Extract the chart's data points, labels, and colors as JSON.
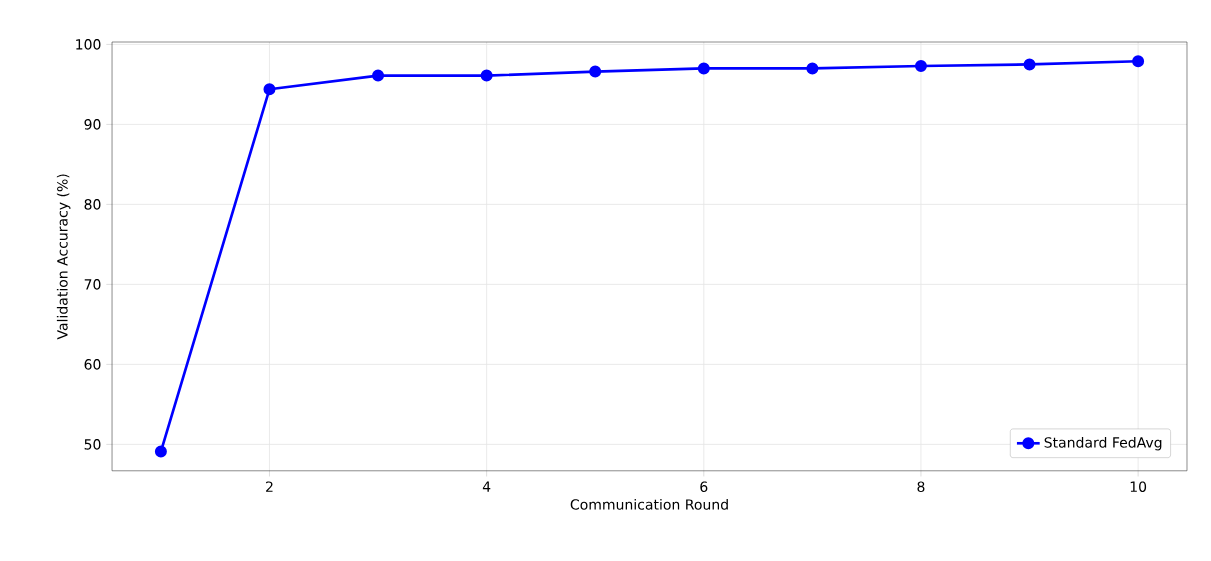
{
  "chart_data": {
    "type": "line",
    "xlabel": "Communication Round",
    "ylabel": "Validation Accuracy (%)",
    "x": [
      1,
      2,
      3,
      4,
      5,
      6,
      7,
      8,
      9,
      10
    ],
    "series": [
      {
        "name": "Standard FedAvg",
        "color": "#0000ff",
        "values": [
          49.1,
          94.4,
          96.1,
          96.1,
          96.6,
          97.0,
          97.0,
          97.3,
          97.5,
          97.9
        ]
      }
    ],
    "xlim": [
      0.55,
      10.45
    ],
    "ylim": [
      46.7,
      100.3
    ],
    "xticks": [
      2,
      4,
      6,
      8,
      10
    ],
    "yticks": [
      50,
      60,
      70,
      80,
      90,
      100
    ],
    "grid": true,
    "legend": "bottom right",
    "marker": "circle",
    "line_style": "solid"
  }
}
